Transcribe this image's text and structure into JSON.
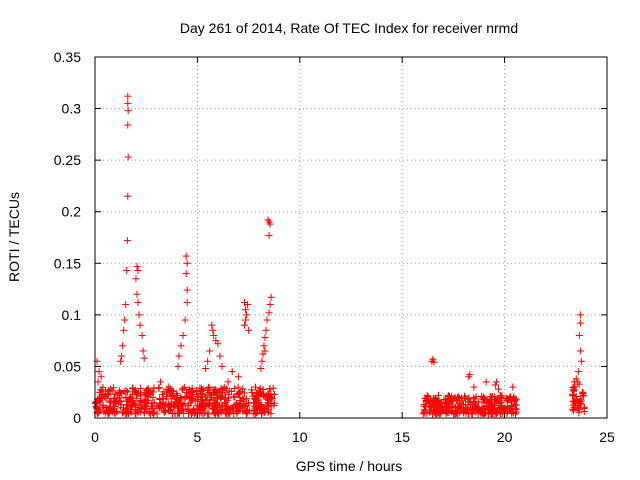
{
  "chart_data": {
    "type": "scatter",
    "title": "Day 261 of 2014, Rate Of TEC Index for receiver nrmd",
    "xlabel": "GPS time / hours",
    "ylabel": "ROTI / TECUs",
    "xlim": [
      0,
      25
    ],
    "ylim": [
      0,
      0.35
    ],
    "xticks": [
      0,
      5,
      10,
      15,
      20,
      25
    ],
    "xtick_labels": [
      "0",
      "5",
      "10",
      "15",
      "20",
      "25"
    ],
    "yticks": [
      0,
      0.05,
      0.1,
      0.15,
      0.2,
      0.25,
      0.3,
      0.35
    ],
    "ytick_labels": [
      "0",
      "0.05",
      "0.1",
      "0.15",
      "0.2",
      "0.25",
      "0.3",
      "0.35"
    ],
    "grid": true,
    "marker": "+",
    "marker_color": "#ff0000",
    "series": [
      {
        "name": "ROTI",
        "points": [
          [
            1.6,
            0.312
          ],
          [
            1.6,
            0.305
          ],
          [
            1.62,
            0.298
          ],
          [
            1.6,
            0.284
          ],
          [
            1.62,
            0.253
          ],
          [
            1.6,
            0.215
          ],
          [
            1.58,
            0.172
          ],
          [
            1.55,
            0.143
          ],
          [
            1.5,
            0.11
          ],
          [
            1.45,
            0.095
          ],
          [
            1.4,
            0.085
          ],
          [
            1.35,
            0.07
          ],
          [
            1.3,
            0.06
          ],
          [
            1.25,
            0.055
          ],
          [
            2.05,
            0.147
          ],
          [
            2.1,
            0.143
          ],
          [
            2.0,
            0.135
          ],
          [
            2.05,
            0.12
          ],
          [
            2.1,
            0.112
          ],
          [
            2.15,
            0.1
          ],
          [
            2.2,
            0.09
          ],
          [
            2.3,
            0.08
          ],
          [
            2.35,
            0.065
          ],
          [
            2.4,
            0.058
          ],
          [
            4.45,
            0.157
          ],
          [
            4.5,
            0.15
          ],
          [
            4.45,
            0.14
          ],
          [
            4.5,
            0.124
          ],
          [
            4.5,
            0.112
          ],
          [
            4.4,
            0.095
          ],
          [
            4.3,
            0.08
          ],
          [
            4.2,
            0.07
          ],
          [
            4.1,
            0.06
          ],
          [
            4.05,
            0.05
          ],
          [
            5.7,
            0.09
          ],
          [
            5.75,
            0.085
          ],
          [
            5.8,
            0.08
          ],
          [
            5.9,
            0.075
          ],
          [
            6.0,
            0.072
          ],
          [
            5.6,
            0.065
          ],
          [
            5.5,
            0.055
          ],
          [
            6.1,
            0.06
          ],
          [
            5.4,
            0.048
          ],
          [
            6.2,
            0.05
          ],
          [
            7.3,
            0.112
          ],
          [
            7.35,
            0.105
          ],
          [
            7.4,
            0.1
          ],
          [
            7.35,
            0.095
          ],
          [
            7.3,
            0.09
          ],
          [
            7.45,
            0.11
          ],
          [
            7.5,
            0.085
          ],
          [
            8.45,
            0.192
          ],
          [
            8.5,
            0.19
          ],
          [
            8.55,
            0.188
          ],
          [
            8.5,
            0.177
          ],
          [
            8.6,
            0.117
          ],
          [
            8.55,
            0.11
          ],
          [
            8.5,
            0.102
          ],
          [
            8.4,
            0.095
          ],
          [
            8.35,
            0.085
          ],
          [
            8.3,
            0.078
          ],
          [
            8.25,
            0.07
          ],
          [
            8.2,
            0.062
          ],
          [
            8.15,
            0.055
          ],
          [
            8.1,
            0.048
          ],
          [
            8.3,
            0.065
          ],
          [
            0.1,
            0.055
          ],
          [
            0.2,
            0.045
          ],
          [
            0.3,
            0.04
          ],
          [
            0.15,
            0.035
          ],
          [
            3.2,
            0.035
          ],
          [
            3.6,
            0.03
          ],
          [
            6.7,
            0.045
          ],
          [
            7.0,
            0.04
          ],
          [
            6.5,
            0.035
          ],
          [
            16.5,
            0.057
          ],
          [
            16.45,
            0.055
          ],
          [
            16.55,
            0.054
          ],
          [
            18.3,
            0.042
          ],
          [
            18.25,
            0.04
          ],
          [
            18.5,
            0.03
          ],
          [
            19.1,
            0.035
          ],
          [
            19.6,
            0.035
          ],
          [
            19.55,
            0.032
          ],
          [
            19.7,
            0.028
          ],
          [
            20.4,
            0.03
          ],
          [
            23.7,
            0.1
          ],
          [
            23.7,
            0.092
          ],
          [
            23.65,
            0.08
          ],
          [
            23.7,
            0.065
          ],
          [
            23.75,
            0.055
          ],
          [
            23.6,
            0.045
          ],
          [
            23.5,
            0.038
          ],
          [
            23.4,
            0.035
          ]
        ],
        "dense_bands": [
          {
            "x": [
              0.0,
              8.8
            ],
            "y": [
              0.004,
              0.03
            ]
          },
          {
            "x": [
              16.0,
              20.6
            ],
            "y": [
              0.004,
              0.022
            ]
          },
          {
            "x": [
              23.3,
              23.9
            ],
            "y": [
              0.005,
              0.035
            ]
          }
        ]
      }
    ]
  }
}
